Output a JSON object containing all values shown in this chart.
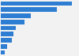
{
  "values": [
    33,
    26,
    14,
    11,
    7,
    6,
    5,
    3,
    2
  ],
  "bar_color": "#2d7dd2",
  "background_color": "#f2f2f2",
  "xlim": [
    0,
    36
  ],
  "bar_height": 0.75,
  "grid_color": "#cccccc",
  "figsize": [
    1.0,
    0.71
  ],
  "dpi": 100
}
